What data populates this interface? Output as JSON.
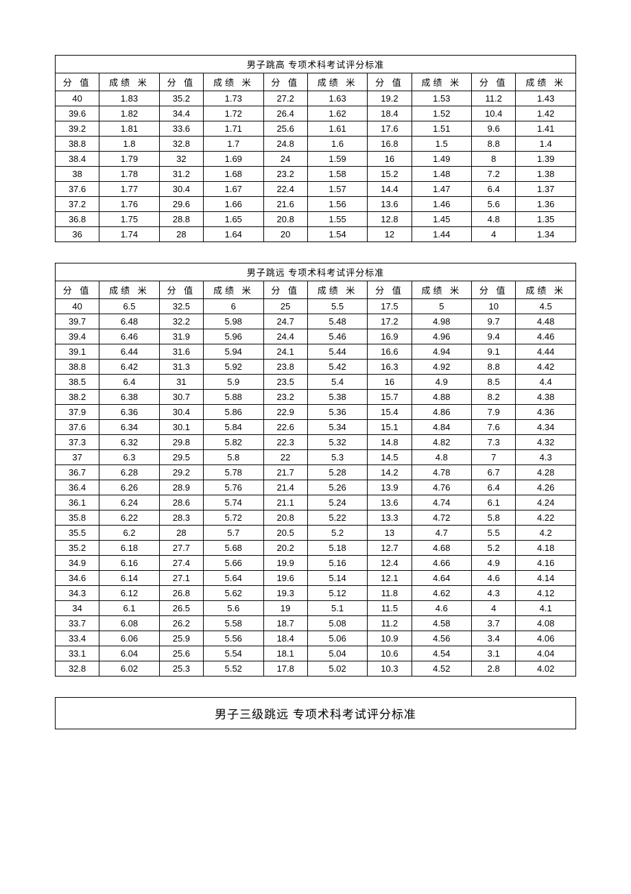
{
  "table1": {
    "title": "男子跳高 专项术科考试评分标准",
    "header_score": "分 值",
    "header_result": "成绩 米",
    "columns": 5,
    "rows": [
      [
        "40",
        "1.83",
        "35.2",
        "1.73",
        "27.2",
        "1.63",
        "19.2",
        "1.53",
        "11.2",
        "1.43"
      ],
      [
        "39.6",
        "1.82",
        "34.4",
        "1.72",
        "26.4",
        "1.62",
        "18.4",
        "1.52",
        "10.4",
        "1.42"
      ],
      [
        "39.2",
        "1.81",
        "33.6",
        "1.71",
        "25.6",
        "1.61",
        "17.6",
        "1.51",
        "9.6",
        "1.41"
      ],
      [
        "38.8",
        "1.8",
        "32.8",
        "1.7",
        "24.8",
        "1.6",
        "16.8",
        "1.5",
        "8.8",
        "1.4"
      ],
      [
        "38.4",
        "1.79",
        "32",
        "1.69",
        "24",
        "1.59",
        "16",
        "1.49",
        "8",
        "1.39"
      ],
      [
        "38",
        "1.78",
        "31.2",
        "1.68",
        "23.2",
        "1.58",
        "15.2",
        "1.48",
        "7.2",
        "1.38"
      ],
      [
        "37.6",
        "1.77",
        "30.4",
        "1.67",
        "22.4",
        "1.57",
        "14.4",
        "1.47",
        "6.4",
        "1.37"
      ],
      [
        "37.2",
        "1.76",
        "29.6",
        "1.66",
        "21.6",
        "1.56",
        "13.6",
        "1.46",
        "5.6",
        "1.36"
      ],
      [
        "36.8",
        "1.75",
        "28.8",
        "1.65",
        "20.8",
        "1.55",
        "12.8",
        "1.45",
        "4.8",
        "1.35"
      ],
      [
        "36",
        "1.74",
        "28",
        "1.64",
        "20",
        "1.54",
        "12",
        "1.44",
        "4",
        "1.34"
      ]
    ]
  },
  "table2": {
    "title": "男子跳远 专项术科考试评分标准",
    "header_score": "分 值",
    "header_result": "成绩 米",
    "columns": 5,
    "rows": [
      [
        "40",
        "6.5",
        "32.5",
        "6",
        "25",
        "5.5",
        "17.5",
        "5",
        "10",
        "4.5"
      ],
      [
        "39.7",
        "6.48",
        "32.2",
        "5.98",
        "24.7",
        "5.48",
        "17.2",
        "4.98",
        "9.7",
        "4.48"
      ],
      [
        "39.4",
        "6.46",
        "31.9",
        "5.96",
        "24.4",
        "5.46",
        "16.9",
        "4.96",
        "9.4",
        "4.46"
      ],
      [
        "39.1",
        "6.44",
        "31.6",
        "5.94",
        "24.1",
        "5.44",
        "16.6",
        "4.94",
        "9.1",
        "4.44"
      ],
      [
        "38.8",
        "6.42",
        "31.3",
        "5.92",
        "23.8",
        "5.42",
        "16.3",
        "4.92",
        "8.8",
        "4.42"
      ],
      [
        "38.5",
        "6.4",
        "31",
        "5.9",
        "23.5",
        "5.4",
        "16",
        "4.9",
        "8.5",
        "4.4"
      ],
      [
        "38.2",
        "6.38",
        "30.7",
        "5.88",
        "23.2",
        "5.38",
        "15.7",
        "4.88",
        "8.2",
        "4.38"
      ],
      [
        "37.9",
        "6.36",
        "30.4",
        "5.86",
        "22.9",
        "5.36",
        "15.4",
        "4.86",
        "7.9",
        "4.36"
      ],
      [
        "37.6",
        "6.34",
        "30.1",
        "5.84",
        "22.6",
        "5.34",
        "15.1",
        "4.84",
        "7.6",
        "4.34"
      ],
      [
        "37.3",
        "6.32",
        "29.8",
        "5.82",
        "22.3",
        "5.32",
        "14.8",
        "4.82",
        "7.3",
        "4.32"
      ],
      [
        "37",
        "6.3",
        "29.5",
        "5.8",
        "22",
        "5.3",
        "14.5",
        "4.8",
        "7",
        "4.3"
      ],
      [
        "36.7",
        "6.28",
        "29.2",
        "5.78",
        "21.7",
        "5.28",
        "14.2",
        "4.78",
        "6.7",
        "4.28"
      ],
      [
        "36.4",
        "6.26",
        "28.9",
        "5.76",
        "21.4",
        "5.26",
        "13.9",
        "4.76",
        "6.4",
        "4.26"
      ],
      [
        "36.1",
        "6.24",
        "28.6",
        "5.74",
        "21.1",
        "5.24",
        "13.6",
        "4.74",
        "6.1",
        "4.24"
      ],
      [
        "35.8",
        "6.22",
        "28.3",
        "5.72",
        "20.8",
        "5.22",
        "13.3",
        "4.72",
        "5.8",
        "4.22"
      ],
      [
        "35.5",
        "6.2",
        "28",
        "5.7",
        "20.5",
        "5.2",
        "13",
        "4.7",
        "5.5",
        "4.2"
      ],
      [
        "35.2",
        "6.18",
        "27.7",
        "5.68",
        "20.2",
        "5.18",
        "12.7",
        "4.68",
        "5.2",
        "4.18"
      ],
      [
        "34.9",
        "6.16",
        "27.4",
        "5.66",
        "19.9",
        "5.16",
        "12.4",
        "4.66",
        "4.9",
        "4.16"
      ],
      [
        "34.6",
        "6.14",
        "27.1",
        "5.64",
        "19.6",
        "5.14",
        "12.1",
        "4.64",
        "4.6",
        "4.14"
      ],
      [
        "34.3",
        "6.12",
        "26.8",
        "5.62",
        "19.3",
        "5.12",
        "11.8",
        "4.62",
        "4.3",
        "4.12"
      ],
      [
        "34",
        "6.1",
        "26.5",
        "5.6",
        "19",
        "5.1",
        "11.5",
        "4.6",
        "4",
        "4.1"
      ],
      [
        "33.7",
        "6.08",
        "26.2",
        "5.58",
        "18.7",
        "5.08",
        "11.2",
        "4.58",
        "3.7",
        "4.08"
      ],
      [
        "33.4",
        "6.06",
        "25.9",
        "5.56",
        "18.4",
        "5.06",
        "10.9",
        "4.56",
        "3.4",
        "4.06"
      ],
      [
        "33.1",
        "6.04",
        "25.6",
        "5.54",
        "18.1",
        "5.04",
        "10.6",
        "4.54",
        "3.1",
        "4.04"
      ],
      [
        "32.8",
        "6.02",
        "25.3",
        "5.52",
        "17.8",
        "5.02",
        "10.3",
        "4.52",
        "2.8",
        "4.02"
      ]
    ]
  },
  "table3": {
    "title": "男子三级跳远 专项术科考试评分标准"
  }
}
